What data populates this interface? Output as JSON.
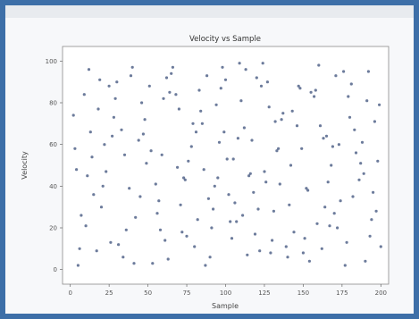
{
  "chart_data": {
    "type": "scatter",
    "title": "Velocity vs Sample",
    "xlabel": "Sample",
    "ylabel": "Velocity",
    "xlim": [
      -5,
      205
    ],
    "ylim": [
      -7,
      107
    ],
    "xticks": [
      0,
      25,
      50,
      75,
      100,
      125,
      150,
      175,
      200
    ],
    "yticks": [
      0,
      20,
      40,
      60,
      80,
      100
    ],
    "grid": false,
    "marker_color": "#3b4f7a",
    "series": [
      {
        "x": [
          5,
          12,
          14,
          20,
          25,
          31,
          40,
          47,
          55,
          60,
          66,
          72,
          78,
          84,
          90,
          95,
          100,
          107,
          112,
          118,
          124,
          130,
          136,
          142,
          150,
          158,
          163,
          170,
          176,
          182,
          190,
          196,
          3,
          9,
          17,
          23,
          28,
          36,
          44,
          51,
          57,
          63,
          70,
          76,
          82,
          88,
          93,
          99,
          104,
          110,
          116,
          121,
          127,
          133,
          139,
          146,
          153,
          160,
          167,
          173,
          179,
          186,
          193,
          199,
          7,
          11,
          19,
          26,
          33,
          38,
          46,
          53,
          59,
          65,
          71,
          79,
          86,
          91,
          97,
          102,
          108,
          114,
          120,
          126,
          131,
          137,
          144,
          149,
          155,
          162,
          168,
          174,
          181,
          188,
          194,
          198,
          2,
          15,
          22,
          30,
          42,
          49,
          61,
          68,
          74,
          81,
          87,
          94,
          101,
          106,
          113,
          119,
          125,
          132,
          140,
          147,
          152,
          159,
          165,
          171,
          178,
          184,
          191,
          197,
          6,
          13,
          21,
          29,
          35,
          41,
          48,
          56,
          62,
          69,
          75,
          83,
          89,
          96,
          103,
          109,
          115,
          122,
          128,
          134,
          141,
          148,
          154,
          161,
          166,
          172,
          180,
          187,
          192,
          195,
          4,
          10,
          18,
          27,
          34,
          39,
          45,
          52,
          58,
          64,
          73,
          80,
          85,
          92,
          98,
          105,
          111,
          117,
          123,
          129,
          135,
          143,
          151,
          157,
          164,
          169,
          177,
          183,
          189,
          200
        ],
        "y": [
          2,
          96,
          54,
          30,
          88,
          12,
          97,
          65,
          41,
          82,
          97,
          18,
          59,
          76,
          6,
          44,
          91,
          23,
          68,
          37,
          99,
          14,
          72,
          50,
          8,
          86,
          63,
          27,
          95,
          35,
          4,
          71,
          58,
          84,
          9,
          47,
          73,
          19,
          62,
          88,
          33,
          5,
          77,
          52,
          24,
          93,
          40,
          66,
          15,
          81,
          46,
          29,
          90,
          57,
          11,
          69,
          38,
          98,
          21,
          60,
          83,
          43,
          16,
          79,
          26,
          45,
          91,
          13,
          67,
          39,
          80,
          3,
          55,
          94,
          31,
          70,
          48,
          20,
          87,
          36,
          63,
          7,
          92,
          42,
          28,
          75,
          18,
          58,
          85,
          10,
          50,
          33,
          89,
          61,
          24,
          52,
          74,
          36,
          60,
          90,
          25,
          51,
          14,
          84,
          43,
          66,
          2,
          79,
          53,
          32,
          96,
          17,
          47,
          71,
          6,
          88,
          39,
          22,
          64,
          93,
          13,
          56,
          81,
          28,
          10,
          66,
          40,
          82,
          55,
          3,
          72,
          27,
          92,
          49,
          16,
          86,
          34,
          61,
          23,
          99,
          45,
          9,
          78,
          58,
          31,
          87,
          4,
          69,
          42,
          20,
          73,
          51,
          95,
          37,
          48,
          21,
          77,
          64,
          6,
          93,
          35,
          57,
          19,
          85,
          44,
          11,
          70,
          29,
          97,
          53,
          26,
          62,
          88,
          8,
          41,
          76,
          15,
          83,
          30,
          59,
          2,
          67,
          46,
          11
        ]
      }
    ]
  }
}
